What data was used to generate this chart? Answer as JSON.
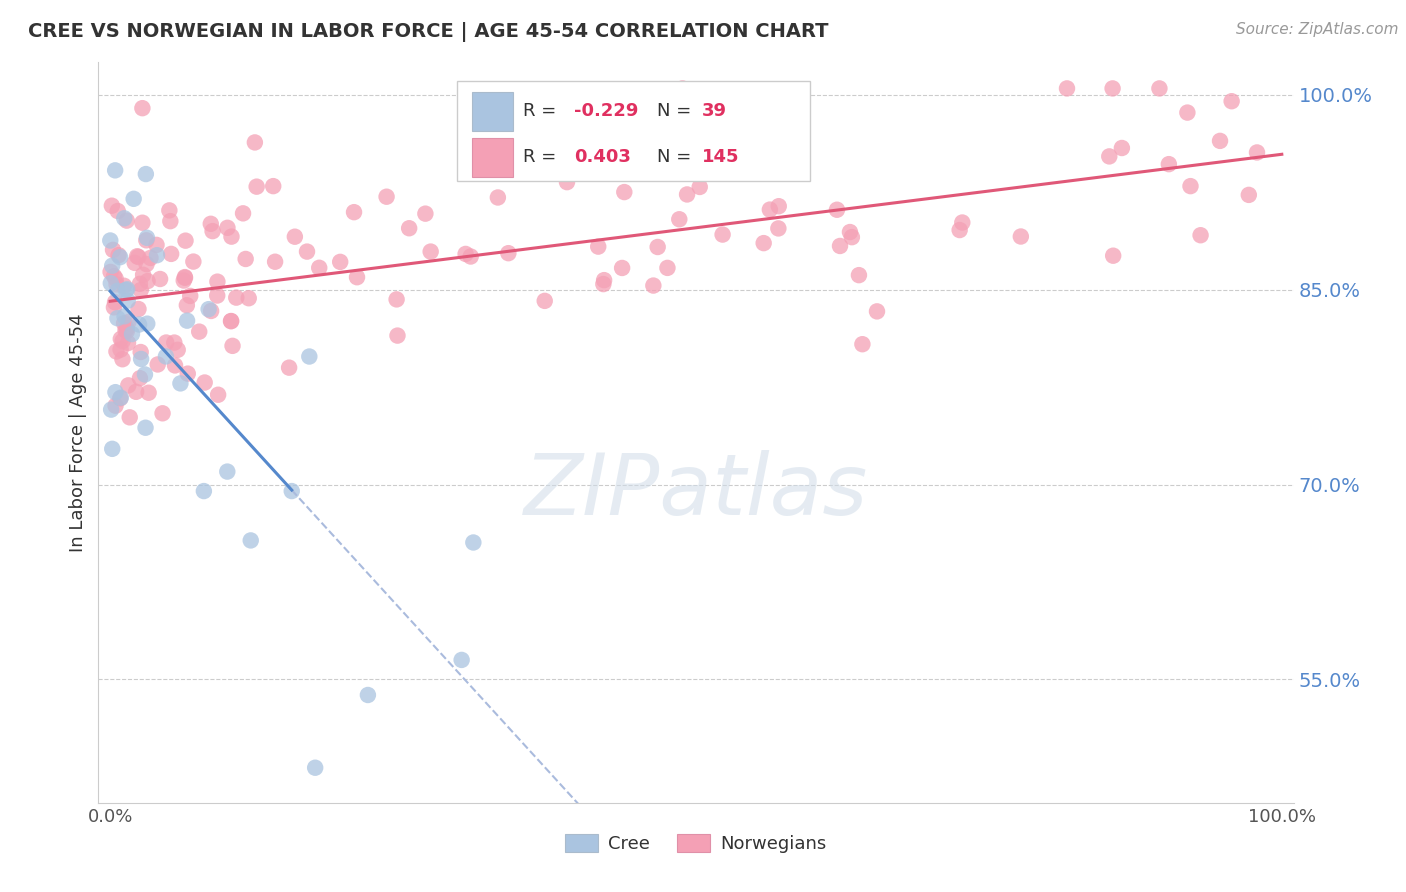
{
  "title": "CREE VS NORWEGIAN IN LABOR FORCE | AGE 45-54 CORRELATION CHART",
  "source": "Source: ZipAtlas.com",
  "ylabel": "In Labor Force | Age 45-54",
  "ytick_vals": [
    0.55,
    0.7,
    0.85,
    1.0
  ],
  "ytick_labels": [
    "55.0%",
    "70.0%",
    "85.0%",
    "100.0%"
  ],
  "ymin": 0.455,
  "ymax": 1.025,
  "xmin": -0.01,
  "xmax": 1.01,
  "cree_color": "#aac4e0",
  "cree_edge_color": "#88aad0",
  "norwegian_color": "#f4a0b5",
  "norwegian_edge_color": "#e07090",
  "cree_line_color": "#5588cc",
  "norwegian_line_color": "#e05878",
  "dash_color": "#aabbdd",
  "cree_R": -0.229,
  "cree_N": 39,
  "norwegian_R": 0.403,
  "norwegian_N": 145,
  "background_color": "#ffffff",
  "grid_color": "#cccccc",
  "watermark_color": "#d0dce8",
  "title_color": "#333333",
  "source_color": "#999999",
  "ytick_color": "#5588cc",
  "legend_text_color": "#333333",
  "legend_val_color": "#e03060",
  "norw_line_start_y": 0.84,
  "norw_line_end_y": 0.955,
  "cree_line_start_y": 0.855,
  "cree_line_end_x": 0.155,
  "cree_line_end_y": 0.715
}
